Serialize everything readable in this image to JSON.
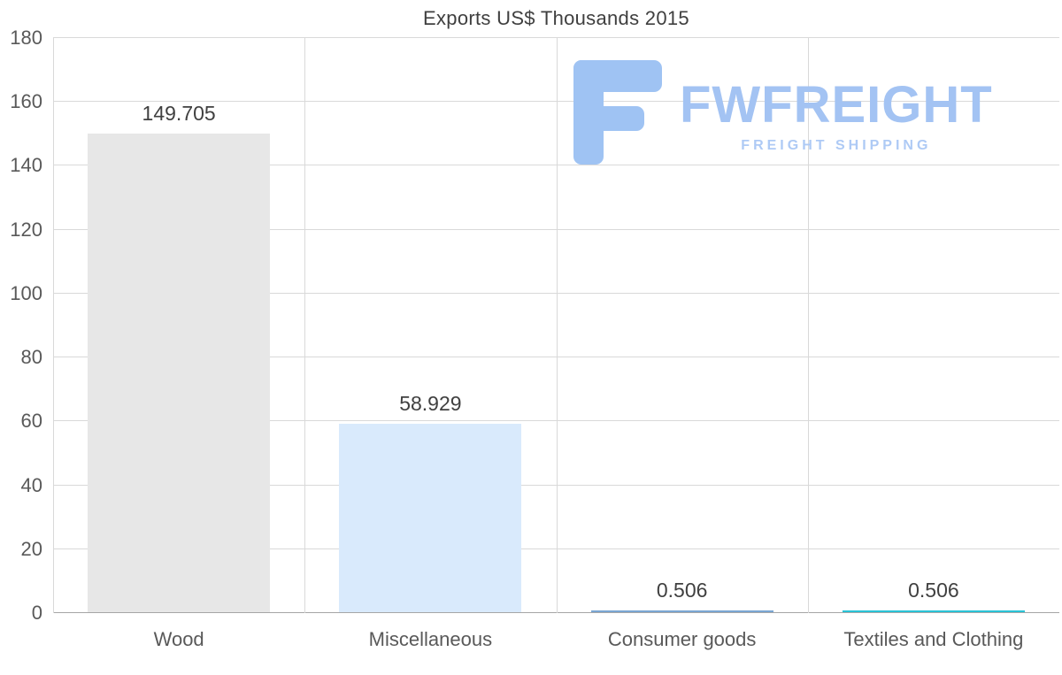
{
  "chart_data": {
    "type": "bar",
    "title": "Exports US$ Thousands 2015",
    "categories": [
      "Wood",
      "Miscellaneous",
      "Consumer goods",
      "Textiles and Clothing"
    ],
    "values": [
      149.705,
      58.929,
      0.506,
      0.506
    ],
    "value_labels": [
      "149.705",
      "58.929",
      "0.506",
      "0.506"
    ],
    "bar_colors": [
      "#e7e7e7",
      "#d9eafc",
      "#7aa6d2",
      "#29c3d6"
    ],
    "ylim": [
      0,
      180
    ],
    "ytick_step": 20,
    "ytick_labels": [
      "0",
      "20",
      "40",
      "60",
      "80",
      "100",
      "120",
      "140",
      "160",
      "180"
    ],
    "grid": true,
    "legend_position": "none",
    "xlabel": "",
    "ylabel": ""
  },
  "logo": {
    "text": "FWFREIGHT",
    "subtext": "FREIGHT SHIPPING",
    "color": "#9fc3f3"
  },
  "colors": {
    "gridline": "#d9d9d9",
    "axis": "#a6a6a6",
    "tick_text": "#595959",
    "value_text": "#404040",
    "title_text": "#3f3f3f"
  }
}
